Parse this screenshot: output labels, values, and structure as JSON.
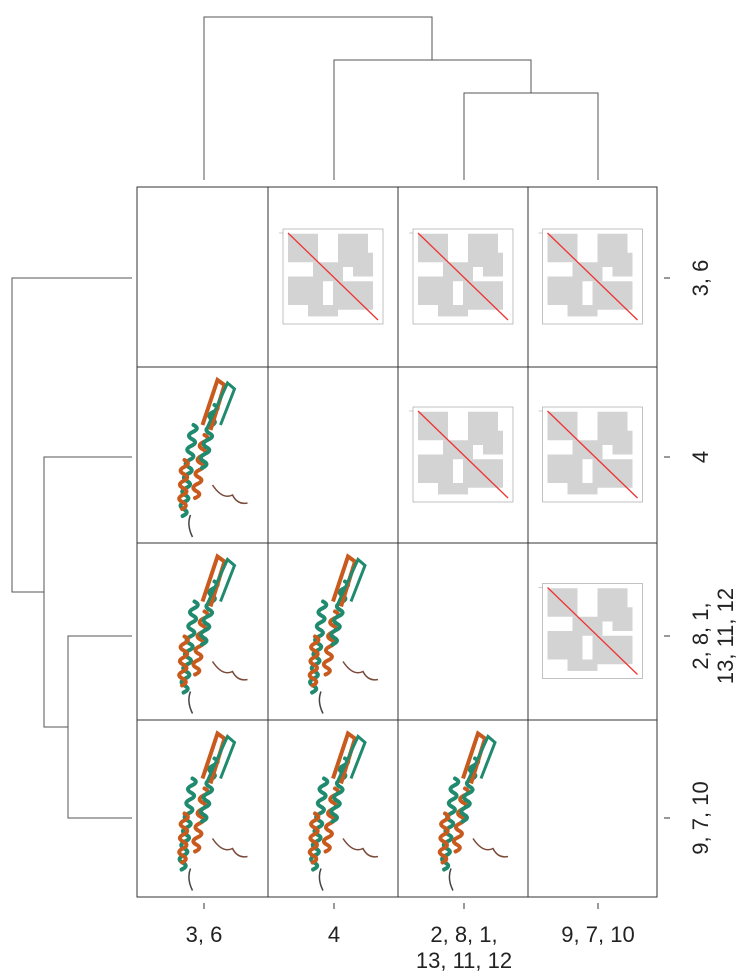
{
  "column_labels": [
    [
      "3, 6"
    ],
    [
      "4"
    ],
    [
      "2, 8, 1,",
      "13, 11, 12"
    ],
    [
      "9, 7, 10"
    ]
  ],
  "row_labels": [
    [
      "3, 6"
    ],
    [
      "4"
    ],
    [
      "2, 8, 1,",
      "13, 11, 12"
    ],
    [
      "9, 7, 10"
    ]
  ]
}
